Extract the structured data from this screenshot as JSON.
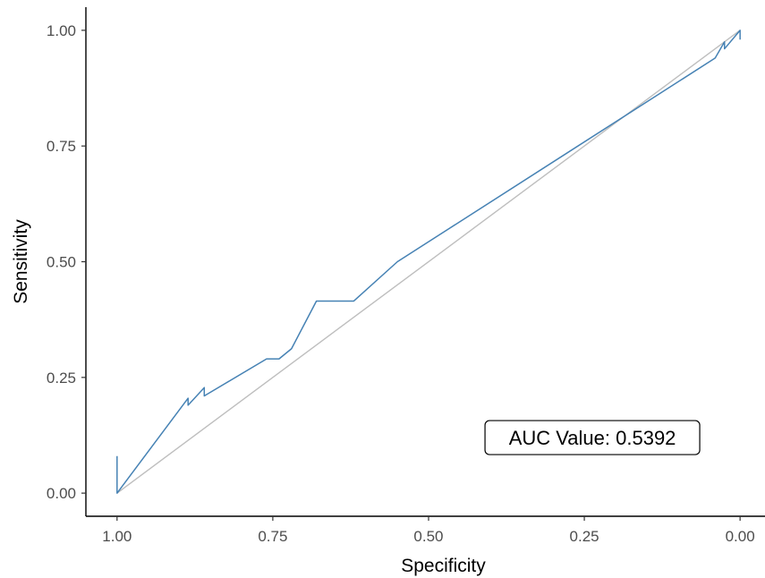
{
  "chart_data": {
    "type": "line",
    "title": "",
    "xlabel": "Specificity",
    "ylabel": "Sensitivity",
    "x_reversed": true,
    "xlim": [
      1.05,
      -0.04
    ],
    "ylim": [
      -0.05,
      1.05
    ],
    "x_ticks": [
      1.0,
      0.75,
      0.5,
      0.25,
      0.0
    ],
    "x_tick_labels": [
      "1.00",
      "0.75",
      "0.50",
      "0.25",
      "0.00"
    ],
    "y_ticks": [
      0.0,
      0.25,
      0.5,
      0.75,
      1.0
    ],
    "y_tick_labels": [
      "0.00",
      "0.25",
      "0.50",
      "0.75",
      "1.00"
    ],
    "grid": false,
    "series": [
      {
        "color": "#4682b4",
        "x": [
          1.0,
          1.0,
          1.0,
          0.886,
          0.886,
          0.86,
          0.86,
          0.76,
          0.74,
          0.72,
          0.68,
          0.62,
          0.55,
          0.04,
          0.025,
          0.025,
          0.0,
          0.0
        ],
        "y": [
          0.08,
          0.0,
          0.0,
          0.205,
          0.19,
          0.228,
          0.21,
          0.29,
          0.29,
          0.312,
          0.415,
          0.415,
          0.5,
          0.94,
          0.975,
          0.96,
          1.0,
          0.98
        ]
      },
      {
        "color": "#bebebe",
        "x": [
          1.0,
          0.0
        ],
        "y": [
          0.0,
          1.0
        ]
      }
    ],
    "annotations": [
      {
        "text": "AUC Value: 0.5392",
        "x": 0.25,
        "y": 0.12
      }
    ]
  }
}
